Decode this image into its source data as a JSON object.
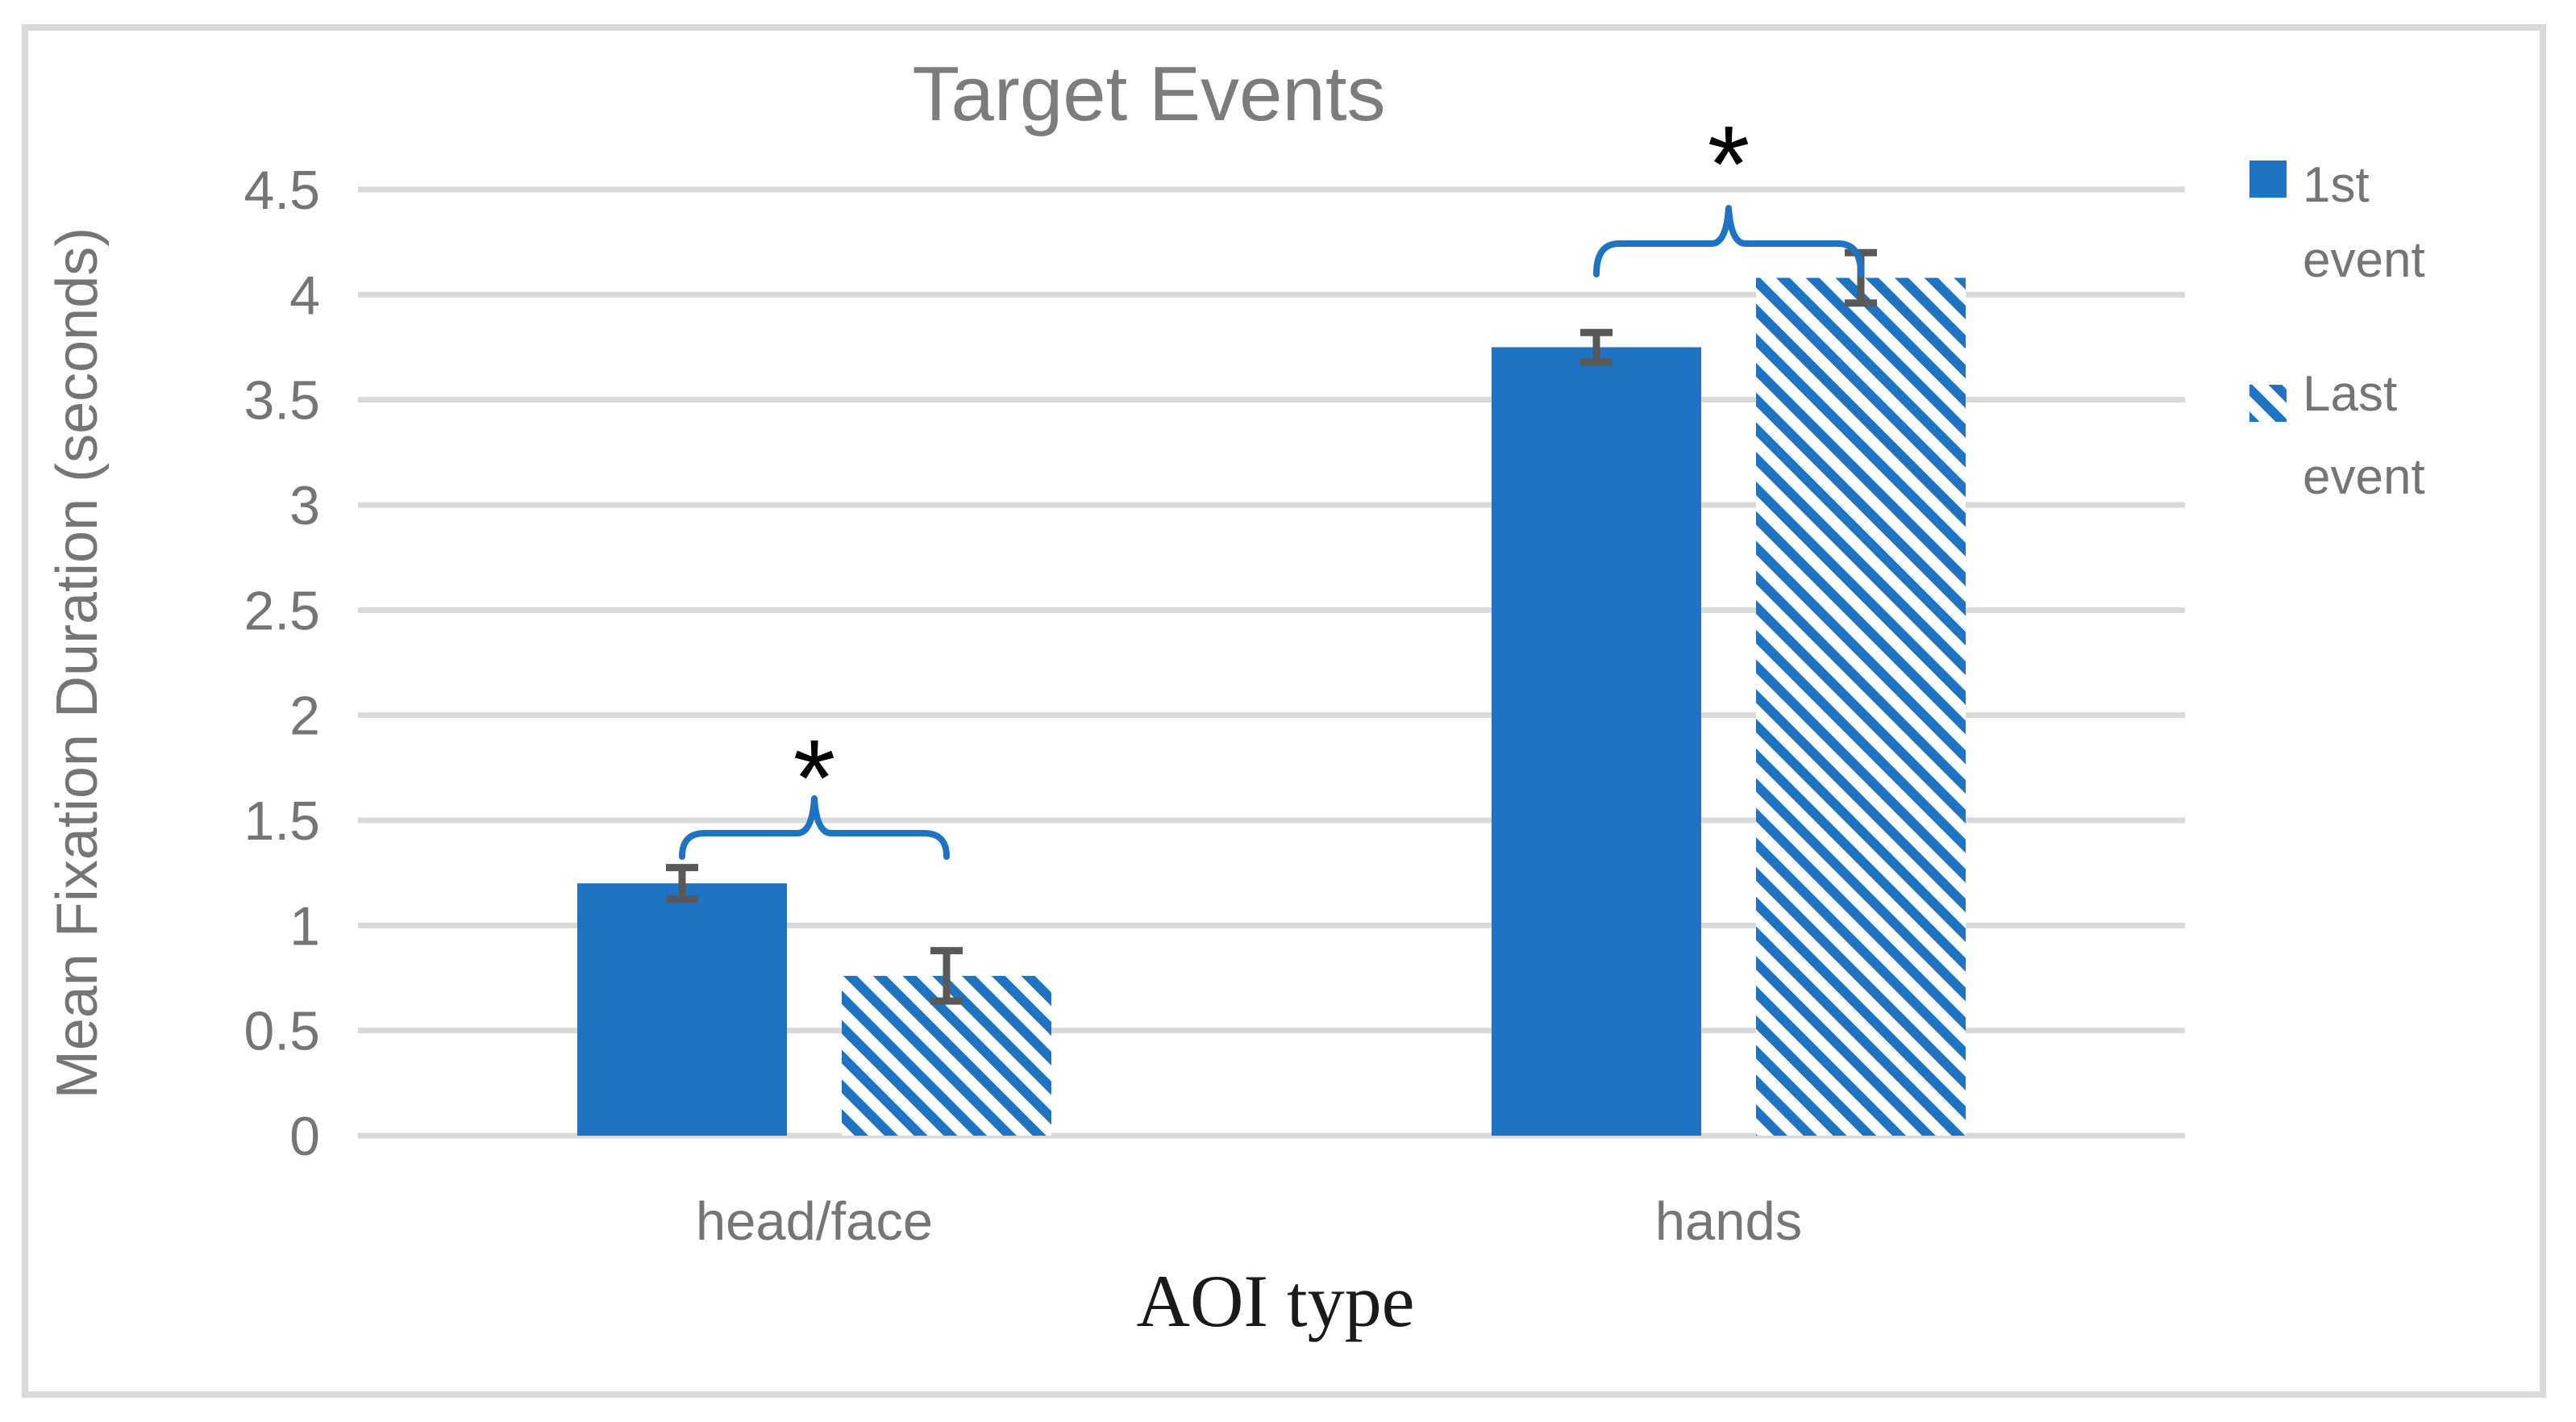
{
  "chart_data": {
    "type": "bar",
    "title": "Target Events",
    "xlabel": "AOI type",
    "ylabel": "Mean Fixation Duration (seconds)",
    "categories": [
      "head/face",
      "hands"
    ],
    "series": [
      {
        "name": "1st event",
        "style": "solid",
        "values": [
          1.2,
          3.75
        ],
        "errors": [
          0.075,
          0.07
        ]
      },
      {
        "name": "Last event",
        "style": "hatched-diagonal",
        "values": [
          0.76,
          4.08
        ],
        "errors": [
          0.12,
          0.12
        ]
      }
    ],
    "ylim": [
      0,
      4.5
    ],
    "ytick_step": 0.5,
    "yticks": [
      "0",
      "0.5",
      "1",
      "1.5",
      "2",
      "2.5",
      "3",
      "3.5",
      "4",
      "4.5"
    ],
    "grid": "horizontal",
    "legend_position": "right",
    "legend": [
      {
        "lines": [
          "1st",
          "event"
        ],
        "series": "1st event"
      },
      {
        "lines": [
          "Last",
          "event"
        ],
        "series": "Last event"
      }
    ],
    "significance": [
      {
        "category": "head/face",
        "between": "1st event vs Last event",
        "marker": "*"
      },
      {
        "category": "hands",
        "between": "1st event vs Last event",
        "marker": "*"
      }
    ],
    "colors": {
      "bar_blue": "#1E73C3",
      "grid_gray": "#D9D9D9",
      "border_gray": "#D9D9D9",
      "error_bar_gray": "#595959",
      "text_gray": "#757575",
      "title_gray": "#7C7C7C",
      "xlabel_black": "#1A1A1A",
      "asterisk_black": "#000000",
      "brace_blue": "#1E73C3",
      "background": "#FFFFFF"
    }
  }
}
